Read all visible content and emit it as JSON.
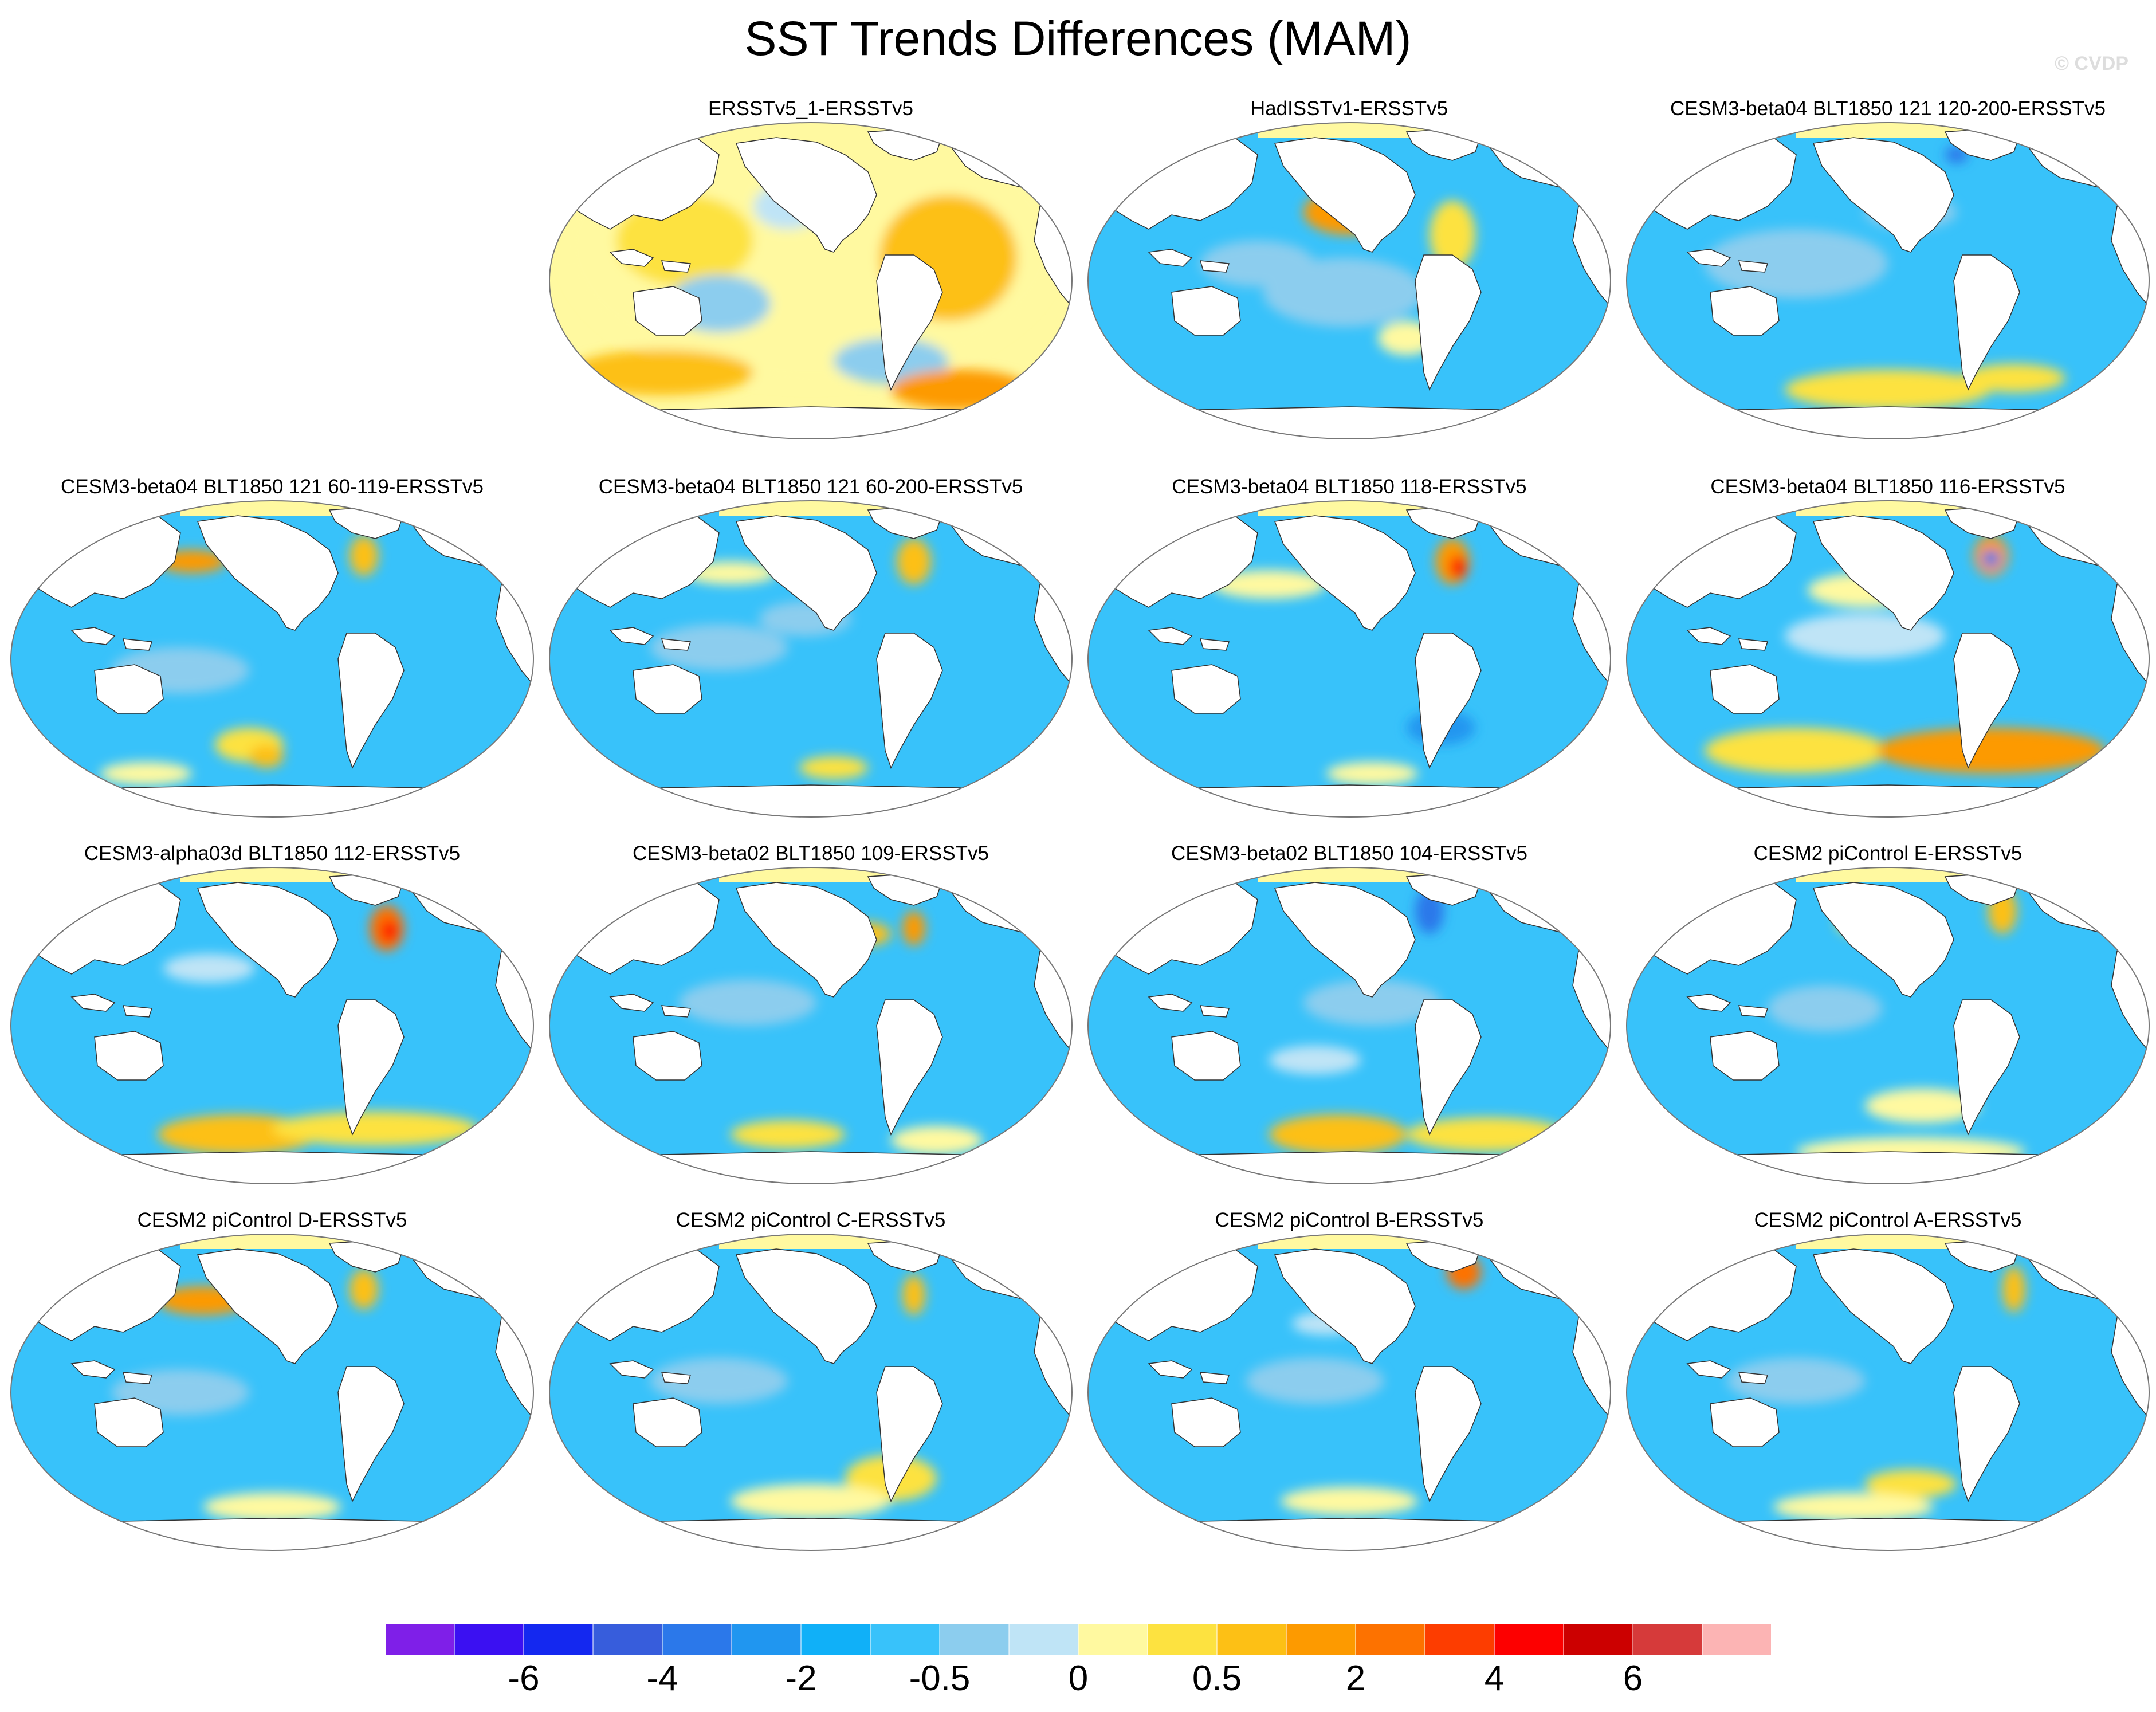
{
  "title": "SST Trends Differences (MAM)",
  "copyright": "© CVDP",
  "colors": {
    "land": "#ffffff",
    "coast": "#333333",
    "base_ocean": "#38c2fa"
  },
  "chart_data": {
    "type": "heatmap",
    "projection": "global map (Robinson-like ellipse)",
    "colorbar": {
      "colors": [
        "#7f1fe8",
        "#3b10f2",
        "#1428f0",
        "#375ddc",
        "#2b78ea",
        "#2096f0",
        "#10b0f8",
        "#38c2fa",
        "#8ccdee",
        "#bfe4f6",
        "#fff9a0",
        "#fde240",
        "#fdc015",
        "#fd9a00",
        "#fd7200",
        "#fd3d00",
        "#fd0000",
        "#cc0000",
        "#d63a3a",
        "#fcb4b4"
      ],
      "tick_labels": [
        "-6",
        "-4",
        "-2",
        "-0.5",
        "0",
        "0.5",
        "2",
        "4",
        "6"
      ],
      "tick_boundaries": [
        2,
        4,
        6,
        8,
        10,
        12,
        14,
        16,
        18
      ]
    },
    "panels": [
      {
        "title": "ERSSTv5_1-ERSSTv5",
        "row": 0,
        "col": 1,
        "dominant": "yellow"
      },
      {
        "title": "HadISSTv1-ERSSTv5",
        "row": 0,
        "col": 2,
        "dominant": "blue"
      },
      {
        "title": "CESM3-beta04 BLT1850 121 120-200-ERSSTv5",
        "row": 0,
        "col": 3,
        "dominant": "blue"
      },
      {
        "title": "CESM3-beta04 BLT1850 121 60-119-ERSSTv5",
        "row": 1,
        "col": 0,
        "dominant": "blue"
      },
      {
        "title": "CESM3-beta04 BLT1850 121 60-200-ERSSTv5",
        "row": 1,
        "col": 1,
        "dominant": "blue"
      },
      {
        "title": "CESM3-beta04 BLT1850 118-ERSSTv5",
        "row": 1,
        "col": 2,
        "dominant": "blue"
      },
      {
        "title": "CESM3-beta04 BLT1850 116-ERSSTv5",
        "row": 1,
        "col": 3,
        "dominant": "blue"
      },
      {
        "title": "CESM3-alpha03d BLT1850 112-ERSSTv5",
        "row": 2,
        "col": 0,
        "dominant": "blue"
      },
      {
        "title": "CESM3-beta02 BLT1850 109-ERSSTv5",
        "row": 2,
        "col": 1,
        "dominant": "blue"
      },
      {
        "title": "CESM3-beta02 BLT1850 104-ERSSTv5",
        "row": 2,
        "col": 2,
        "dominant": "blue"
      },
      {
        "title": "CESM2 piControl E-ERSSTv5",
        "row": 2,
        "col": 3,
        "dominant": "blue"
      },
      {
        "title": "CESM2 piControl D-ERSSTv5",
        "row": 3,
        "col": 0,
        "dominant": "blue"
      },
      {
        "title": "CESM2 piControl C-ERSSTv5",
        "row": 3,
        "col": 1,
        "dominant": "blue"
      },
      {
        "title": "CESM2 piControl B-ERSSTv5",
        "row": 3,
        "col": 2,
        "dominant": "blue"
      },
      {
        "title": "CESM2 piControl A-ERSSTv5",
        "row": 3,
        "col": 3,
        "dominant": "blue"
      }
    ]
  }
}
